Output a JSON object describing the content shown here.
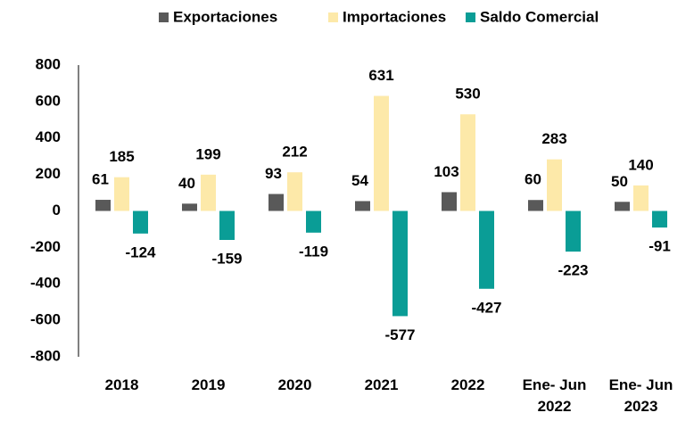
{
  "chart_data": {
    "type": "bar",
    "categories": [
      "2018",
      "2019",
      "2020",
      "2021",
      "2022",
      "Ene- Jun 2022",
      "Ene- Jun 2023"
    ],
    "series": [
      {
        "name": "Exportaciones",
        "color": "#595959",
        "values": [
          61,
          40,
          93,
          54,
          103,
          60,
          50
        ]
      },
      {
        "name": "Importaciones",
        "color": "#fde9a9",
        "values": [
          185,
          199,
          212,
          631,
          530,
          283,
          140
        ]
      },
      {
        "name": "Saldo Comercial",
        "color": "#0a9d96",
        "values": [
          -124,
          -159,
          -119,
          -577,
          -427,
          -223,
          -91
        ]
      }
    ],
    "ylim": [
      -800,
      800
    ],
    "yticks": [
      -800,
      -600,
      -400,
      -200,
      0,
      200,
      400,
      600,
      800
    ],
    "grid": false,
    "legend": "top"
  }
}
